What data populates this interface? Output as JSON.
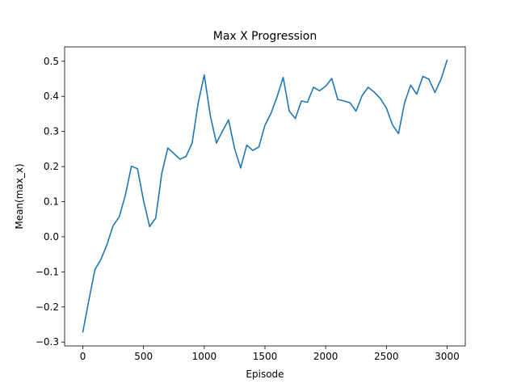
{
  "chart_data": {
    "type": "line",
    "title": "Max X Progression",
    "xlabel": "Episode",
    "ylabel": "Mean(max_x)",
    "xlim": [
      -150,
      3150
    ],
    "ylim": [
      -0.311,
      0.541
    ],
    "x_ticks": [
      0,
      500,
      1000,
      1500,
      2000,
      2500,
      3000
    ],
    "y_ticks": [
      -0.3,
      -0.2,
      -0.1,
      0.0,
      0.1,
      0.2,
      0.3,
      0.4,
      0.5
    ],
    "y_tick_labels": [
      "−0.3",
      "−0.2",
      "−0.1",
      "0.0",
      "0.1",
      "0.2",
      "0.3",
      "0.4",
      "0.5"
    ],
    "grid": false,
    "legend": "none",
    "line_color": "#1f77b4",
    "series": [
      {
        "x": [
          0,
          50,
          100,
          150,
          200,
          250,
          300,
          350,
          400,
          450,
          500,
          550,
          600,
          650,
          700,
          750,
          800,
          850,
          900,
          950,
          1000,
          1050,
          1100,
          1150,
          1200,
          1250,
          1300,
          1350,
          1400,
          1450,
          1500,
          1550,
          1600,
          1650,
          1700,
          1750,
          1800,
          1850,
          1900,
          1950,
          2000,
          2050,
          2100,
          2150,
          2200,
          2250,
          2300,
          2350,
          2400,
          2450,
          2500,
          2550,
          2600,
          2650,
          2700,
          2750,
          2800,
          2850,
          2900,
          2950,
          3000
        ],
        "y": [
          -0.271,
          -0.18,
          -0.093,
          -0.064,
          -0.021,
          0.032,
          0.057,
          0.118,
          0.201,
          0.194,
          0.103,
          0.029,
          0.053,
          0.18,
          0.253,
          0.237,
          0.221,
          0.229,
          0.267,
          0.381,
          0.461,
          0.345,
          0.267,
          0.301,
          0.333,
          0.251,
          0.196,
          0.261,
          0.246,
          0.256,
          0.318,
          0.352,
          0.399,
          0.454,
          0.358,
          0.337,
          0.387,
          0.383,
          0.426,
          0.416,
          0.429,
          0.451,
          0.391,
          0.387,
          0.382,
          0.358,
          0.402,
          0.426,
          0.412,
          0.394,
          0.367,
          0.319,
          0.294,
          0.382,
          0.432,
          0.406,
          0.457,
          0.449,
          0.411,
          0.449,
          0.503
        ]
      }
    ]
  }
}
